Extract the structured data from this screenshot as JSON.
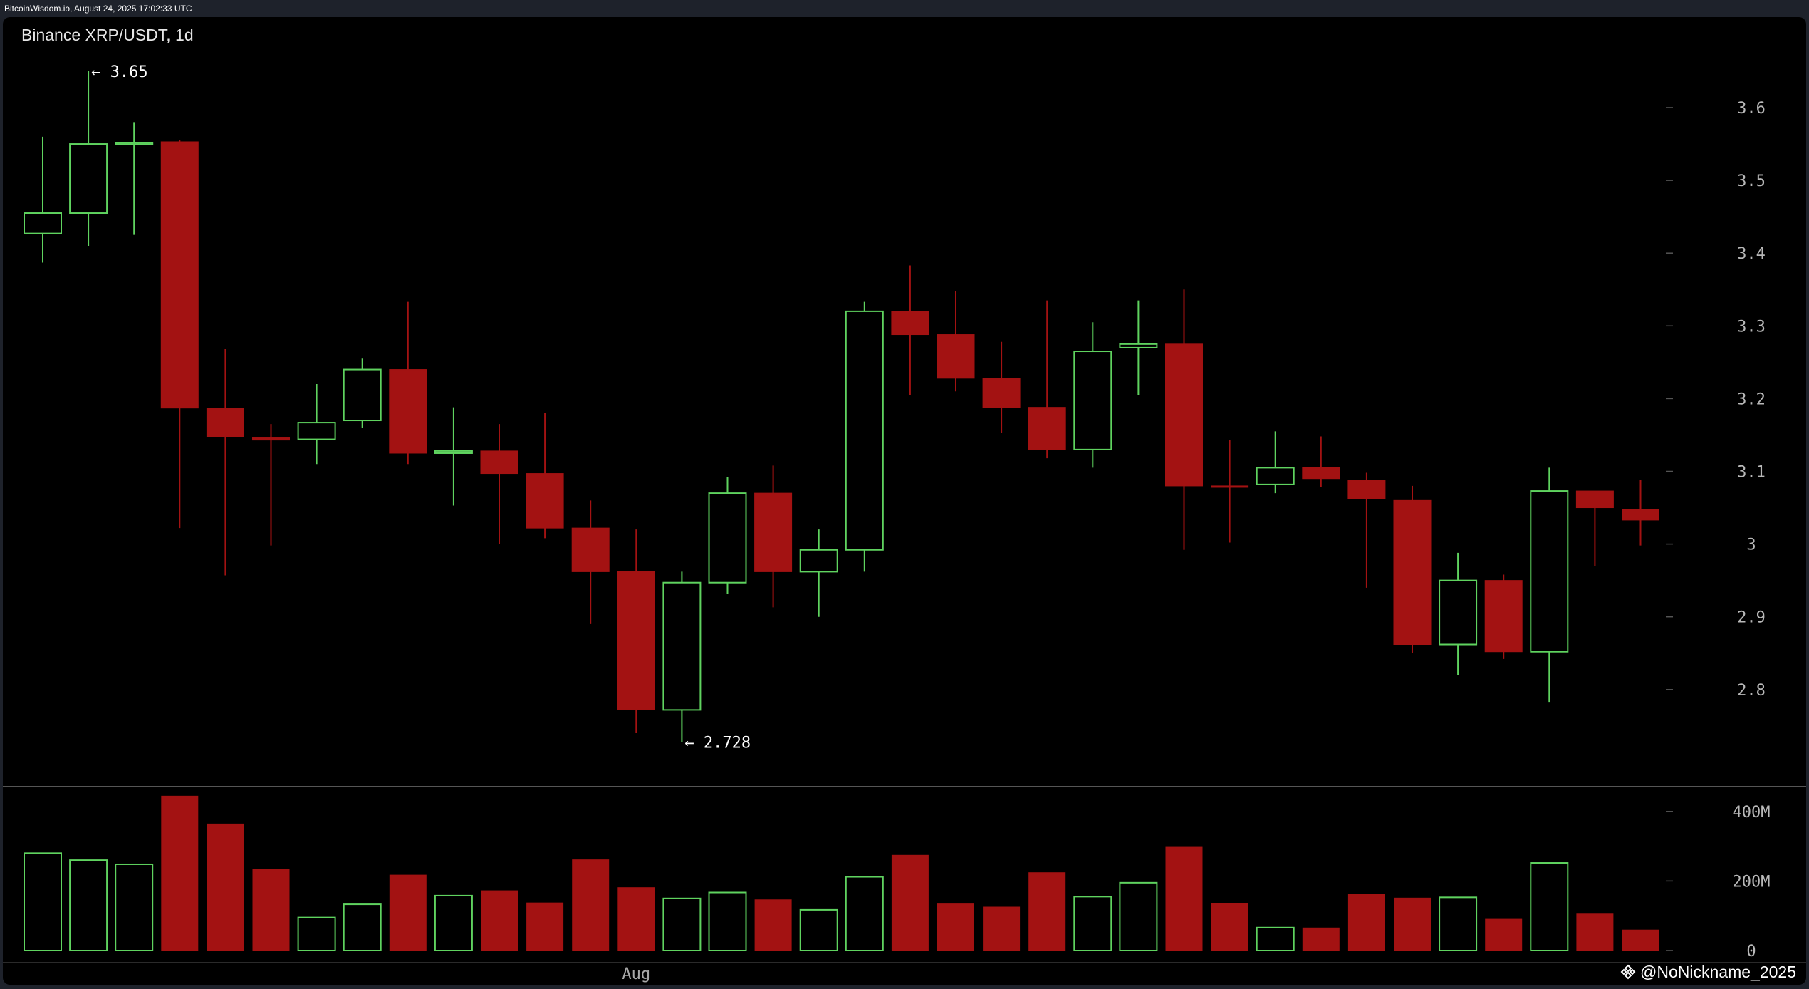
{
  "header": {
    "timestamp": "BitcoinWisdom.io, August 24, 2025 17:02:33 UTC"
  },
  "chart_title": "Binance XRP/USDT, 1d",
  "watermark": {
    "text": "@NoNickname_2025",
    "icon": "binance-diamond-icon"
  },
  "colors": {
    "up": "#5fd35f",
    "down": "#a31212",
    "axis_text": "#b8b8b8",
    "separator": "#555555"
  },
  "chart_data": [
    {
      "type": "candlestick",
      "title": "Binance XRP/USDT, 1d",
      "ylim": [
        2.6,
        3.65
      ],
      "price_ticks": [
        "3.6",
        "3.5",
        "3.4",
        "3.3",
        "3.2",
        "3.1",
        "3",
        "2.9",
        "2.8"
      ],
      "x_labels": [
        {
          "index": 13,
          "label": "Aug"
        }
      ],
      "annotations": [
        {
          "index": 1,
          "price": 3.65,
          "text": "← 3.65"
        },
        {
          "index": 14,
          "price": 2.728,
          "text": "← 2.728"
        }
      ],
      "candles": [
        {
          "o": 3.427,
          "h": 3.56,
          "l": 3.387,
          "c": 3.455
        },
        {
          "o": 3.455,
          "h": 3.65,
          "l": 3.41,
          "c": 3.55
        },
        {
          "o": 3.55,
          "h": 3.58,
          "l": 3.425,
          "c": 3.552
        },
        {
          "o": 3.553,
          "h": 3.555,
          "l": 3.022,
          "c": 3.187
        },
        {
          "o": 3.187,
          "h": 3.268,
          "l": 2.957,
          "c": 3.148
        },
        {
          "o": 3.146,
          "h": 3.165,
          "l": 2.998,
          "c": 3.143
        },
        {
          "o": 3.144,
          "h": 3.22,
          "l": 3.11,
          "c": 3.167
        },
        {
          "o": 3.17,
          "h": 3.255,
          "l": 3.16,
          "c": 3.24
        },
        {
          "o": 3.24,
          "h": 3.333,
          "l": 3.11,
          "c": 3.125
        },
        {
          "o": 3.125,
          "h": 3.188,
          "l": 3.053,
          "c": 3.128
        },
        {
          "o": 3.128,
          "h": 3.165,
          "l": 3.0,
          "c": 3.097
        },
        {
          "o": 3.097,
          "h": 3.18,
          "l": 3.008,
          "c": 3.022
        },
        {
          "o": 3.022,
          "h": 3.06,
          "l": 2.89,
          "c": 2.962
        },
        {
          "o": 2.962,
          "h": 3.02,
          "l": 2.74,
          "c": 2.772
        },
        {
          "o": 2.772,
          "h": 2.962,
          "l": 2.728,
          "c": 2.947
        },
        {
          "o": 2.947,
          "h": 3.092,
          "l": 2.932,
          "c": 3.07
        },
        {
          "o": 3.07,
          "h": 3.108,
          "l": 2.913,
          "c": 2.962
        },
        {
          "o": 2.962,
          "h": 3.02,
          "l": 2.9,
          "c": 2.992
        },
        {
          "o": 2.992,
          "h": 3.333,
          "l": 2.962,
          "c": 3.32
        },
        {
          "o": 3.32,
          "h": 3.383,
          "l": 3.205,
          "c": 3.288
        },
        {
          "o": 3.288,
          "h": 3.348,
          "l": 3.21,
          "c": 3.228
        },
        {
          "o": 3.228,
          "h": 3.278,
          "l": 3.153,
          "c": 3.188
        },
        {
          "o": 3.188,
          "h": 3.335,
          "l": 3.118,
          "c": 3.13
        },
        {
          "o": 3.13,
          "h": 3.305,
          "l": 3.105,
          "c": 3.265
        },
        {
          "o": 3.27,
          "h": 3.335,
          "l": 3.205,
          "c": 3.275
        },
        {
          "o": 3.275,
          "h": 3.35,
          "l": 2.992,
          "c": 3.08
        },
        {
          "o": 3.08,
          "h": 3.143,
          "l": 3.002,
          "c": 3.078
        },
        {
          "o": 3.082,
          "h": 3.155,
          "l": 3.07,
          "c": 3.105
        },
        {
          "o": 3.105,
          "h": 3.148,
          "l": 3.078,
          "c": 3.09
        },
        {
          "o": 3.088,
          "h": 3.098,
          "l": 2.94,
          "c": 3.062
        },
        {
          "o": 3.06,
          "h": 3.08,
          "l": 2.85,
          "c": 2.862
        },
        {
          "o": 2.862,
          "h": 2.988,
          "l": 2.82,
          "c": 2.95
        },
        {
          "o": 2.95,
          "h": 2.958,
          "l": 2.842,
          "c": 2.852
        },
        {
          "o": 2.852,
          "h": 3.105,
          "l": 2.783,
          "c": 3.073
        },
        {
          "o": 3.073,
          "h": 3.073,
          "l": 2.97,
          "c": 3.05
        },
        {
          "o": 3.048,
          "h": 3.088,
          "l": 2.998,
          "c": 3.033
        }
      ]
    },
    {
      "type": "bar",
      "title": "",
      "ylim": [
        0,
        450
      ],
      "unit": "M",
      "volume_ticks": [
        "400M",
        "200M",
        "0"
      ],
      "values": [
        280,
        260,
        248,
        445,
        365,
        235,
        95,
        133,
        218,
        158,
        173,
        138,
        262,
        182,
        150,
        167,
        147,
        117,
        212,
        275,
        135,
        126,
        225,
        155,
        195,
        298,
        137,
        66,
        66,
        162,
        152,
        153,
        91,
        252,
        106,
        60
      ]
    }
  ]
}
